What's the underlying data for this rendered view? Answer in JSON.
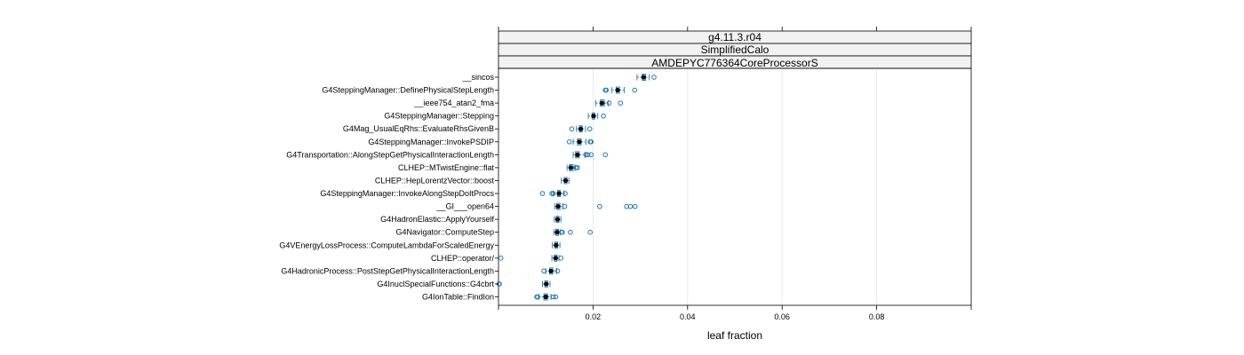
{
  "chart_data": {
    "type": "box",
    "orientation": "horizontal",
    "strips": [
      "g4.11.3.r04",
      "SimplifiedCalo",
      "AMDEPYC776364CoreProcessorS"
    ],
    "xlabel": "leaf fraction",
    "xlim": [
      0.0,
      0.1
    ],
    "xticks": [
      0.02,
      0.04,
      0.06,
      0.08
    ],
    "xtick_labels": [
      "0.02",
      "0.04",
      "0.06",
      "0.08"
    ],
    "grid": true,
    "colors": {
      "box": "#1f78b4",
      "median": "#000000",
      "grid": "#e6e6e6",
      "strip_bg": "#f2f2f2"
    },
    "categories": [
      {
        "name": "__sincos",
        "q1": 0.0304,
        "median": 0.0307,
        "q3": 0.0311,
        "whisker_low": 0.0293,
        "whisker_high": 0.0319,
        "outliers": [
          0.0329
        ]
      },
      {
        "name": "G4SteppingManager::DefinePhysicalStepLength",
        "q1": 0.0249,
        "median": 0.0252,
        "q3": 0.0256,
        "whisker_low": 0.024,
        "whisker_high": 0.0266,
        "outliers": [
          0.0226,
          0.0228,
          0.0288
        ]
      },
      {
        "name": "__ieee754_atan2_fma",
        "q1": 0.0215,
        "median": 0.0219,
        "q3": 0.0224,
        "whisker_low": 0.0206,
        "whisker_high": 0.0232,
        "outliers": [
          0.0234,
          0.0258
        ]
      },
      {
        "name": "G4SteppingManager::Stepping",
        "q1": 0.0198,
        "median": 0.0201,
        "q3": 0.0204,
        "whisker_low": 0.019,
        "whisker_high": 0.021,
        "outliers": [
          0.0222
        ]
      },
      {
        "name": "G4Mag_UsualEqRhs::EvaluateRhsGivenB",
        "q1": 0.0171,
        "median": 0.0174,
        "q3": 0.0177,
        "whisker_low": 0.0165,
        "whisker_high": 0.0184,
        "outliers": [
          0.0155,
          0.0193
        ]
      },
      {
        "name": "G4SteppingManager::InvokePSDIP",
        "q1": 0.0167,
        "median": 0.0171,
        "q3": 0.0175,
        "whisker_low": 0.0158,
        "whisker_high": 0.0185,
        "outliers": [
          0.015,
          0.0194,
          0.0196
        ]
      },
      {
        "name": "G4Transportation::AlongStepGetPhysicalInteractionLength",
        "q1": 0.0163,
        "median": 0.0167,
        "q3": 0.0171,
        "whisker_low": 0.0158,
        "whisker_high": 0.0183,
        "outliers": [
          0.0185,
          0.0189,
          0.0196,
          0.0226
        ]
      },
      {
        "name": "CLHEP::MTwistEngine::flat",
        "q1": 0.015,
        "median": 0.0153,
        "q3": 0.0158,
        "whisker_low": 0.0145,
        "whisker_high": 0.0162,
        "outliers": [
          0.0164,
          0.0167
        ]
      },
      {
        "name": "CLHEP::HepLorentzVector::boost",
        "q1": 0.0139,
        "median": 0.0142,
        "q3": 0.0145,
        "whisker_low": 0.0133,
        "whisker_high": 0.0149,
        "outliers": []
      },
      {
        "name": "G4SteppingManager::InvokeAlongStepDoItProcs",
        "q1": 0.0125,
        "median": 0.0128,
        "q3": 0.0131,
        "whisker_low": 0.0116,
        "whisker_high": 0.0139,
        "outliers": [
          0.0093,
          0.0113,
          0.0116,
          0.0141
        ]
      },
      {
        "name": "__GI___open64",
        "q1": 0.0123,
        "median": 0.0126,
        "q3": 0.013,
        "whisker_low": 0.0119,
        "whisker_high": 0.0136,
        "outliers": [
          0.014,
          0.0214,
          0.0271,
          0.0279,
          0.0289
        ]
      },
      {
        "name": "G4HadronElastic::ApplyYourself",
        "q1": 0.0122,
        "median": 0.0125,
        "q3": 0.0128,
        "whisker_low": 0.0118,
        "whisker_high": 0.0132,
        "outliers": []
      },
      {
        "name": "G4Navigator::ComputeStep",
        "q1": 0.0121,
        "median": 0.0124,
        "q3": 0.0127,
        "whisker_low": 0.0117,
        "whisker_high": 0.0131,
        "outliers": [
          0.0133,
          0.0135,
          0.0152,
          0.0194
        ]
      },
      {
        "name": "G4VEnergyLossProcess::ComputeLambdaForScaledEnergy",
        "q1": 0.0119,
        "median": 0.0122,
        "q3": 0.0125,
        "whisker_low": 0.0114,
        "whisker_high": 0.013,
        "outliers": []
      },
      {
        "name": "CLHEP::operator/",
        "q1": 0.0118,
        "median": 0.0121,
        "q3": 0.0124,
        "whisker_low": 0.0113,
        "whisker_high": 0.0128,
        "outliers": [
          0.0005,
          0.0132
        ]
      },
      {
        "name": "G4HadronicProcess::PostStepGetPhysicalInteractionLength",
        "q1": 0.0108,
        "median": 0.0111,
        "q3": 0.0115,
        "whisker_low": 0.01,
        "whisker_high": 0.0123,
        "outliers": [
          0.0096,
          0.0125
        ]
      },
      {
        "name": "G4InuclSpecialFunctions::G4cbrt",
        "q1": 0.0098,
        "median": 0.0101,
        "q3": 0.0104,
        "whisker_low": 0.0093,
        "whisker_high": 0.0109,
        "outliers": [
          0.0001,
          0.0002
        ]
      },
      {
        "name": "G4IonTable::FindIon",
        "q1": 0.0096,
        "median": 0.01,
        "q3": 0.0104,
        "whisker_low": 0.0085,
        "whisker_high": 0.0111,
        "outliers": [
          0.0081,
          0.0083,
          0.0116,
          0.0121
        ]
      }
    ]
  }
}
